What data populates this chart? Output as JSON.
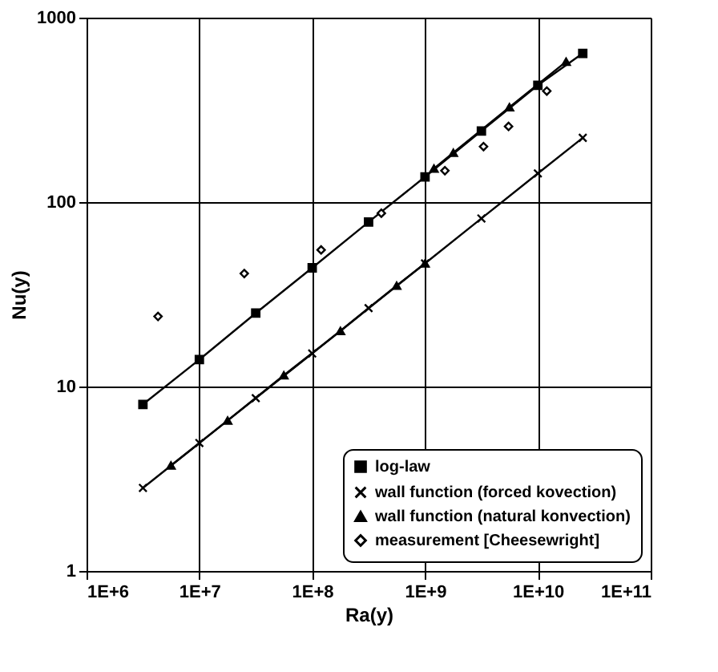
{
  "chart_data": {
    "type": "line",
    "xlabel": "Ra(y)",
    "ylabel": "Nu(y)",
    "log": "xy",
    "grid": true,
    "legend": "bottom right",
    "xlim": [
      1000000,
      100000000000
    ],
    "xticks": [
      {
        "value": 1000000,
        "label": "1E+6"
      },
      {
        "value": 10000000,
        "label": "1E+7"
      },
      {
        "value": 100000000,
        "label": "1E+8"
      },
      {
        "value": 1000000000,
        "label": "1E+9"
      },
      {
        "value": 10000000000,
        "label": "1E+10"
      },
      {
        "value": 100000000000,
        "label": "1E+11"
      }
    ],
    "ylim": [
      1,
      1000
    ],
    "yticks": [
      1,
      10,
      100,
      {
        "value": 1000,
        "label": "1000"
      }
    ],
    "series": [
      {
        "name": "log-law",
        "color": "#000000",
        "marker": "square",
        "x": [
          3160000,
          10000000,
          31600000,
          100000000,
          316000000,
          1000000000,
          3160000000,
          10000000000,
          25000000000
        ],
        "values": [
          8,
          14,
          25,
          44,
          78,
          137,
          243,
          430,
          640
        ]
      },
      {
        "name": "wall function (forced kovection)",
        "color": "#000000",
        "marker": "cross",
        "x": [
          3160000,
          10000000,
          31600000,
          100000000,
          316000000,
          1000000000,
          3160000000,
          10000000000,
          25000000000
        ],
        "values": [
          2.82,
          4.94,
          8.65,
          15.1,
          26.6,
          46.5,
          81.5,
          143,
          223
        ]
      },
      {
        "name": "wall function (natural konvection)",
        "color": "#000000",
        "marker": "triangle",
        "x": [
          5600000,
          17800000,
          56000000,
          178000000,
          560000000,
          1000000000,
          1100000000,
          1200000000,
          1780000000,
          5600000000,
          17800000000
        ],
        "values": [
          3.73,
          6.54,
          11.5,
          20,
          35.2,
          46.5,
          null,
          152,
          185,
          327,
          577
        ]
      },
      {
        "name": "measurement [Cheesewright]",
        "type": "scatter",
        "color": "#000000",
        "marker": "diamond",
        "x": [
          4300000,
          25000000,
          120000000,
          410000000,
          1500000000,
          3300000000,
          5500000000,
          12000000000
        ],
        "values": [
          24,
          41,
          55,
          87,
          148,
          200,
          257,
          400
        ]
      }
    ]
  }
}
